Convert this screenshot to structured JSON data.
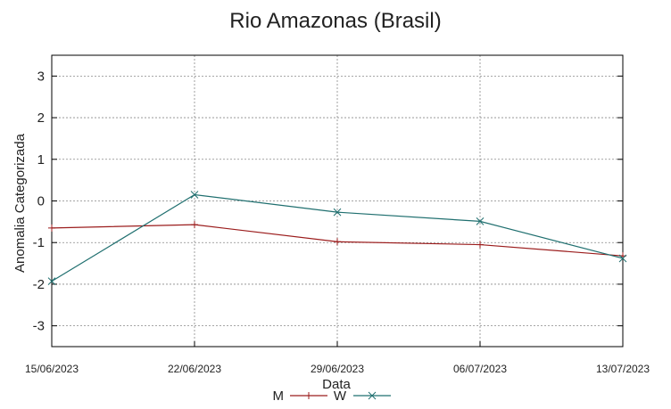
{
  "chart_data": {
    "type": "line",
    "title": "Rio Amazonas (Brasil)",
    "xlabel": "Data",
    "ylabel": "Anomalia Categorizada",
    "categories": [
      "15/06/2023",
      "22/06/2023",
      "29/06/2023",
      "06/07/2023",
      "13/07/2023"
    ],
    "ylim": [
      -3.5,
      3.5
    ],
    "yticks": [
      3,
      2,
      1,
      0,
      -1,
      -2,
      -3
    ],
    "grid": true,
    "legend": "bottom-center",
    "series": [
      {
        "name": "M",
        "color": "#9b1c1c",
        "marker": "plus",
        "values": [
          -0.65,
          -0.57,
          -0.98,
          -1.05,
          -1.32
        ]
      },
      {
        "name": "W",
        "color": "#1f6f6f",
        "marker": "x",
        "values": [
          -1.93,
          0.15,
          -0.27,
          -0.49,
          -1.38
        ]
      }
    ]
  }
}
